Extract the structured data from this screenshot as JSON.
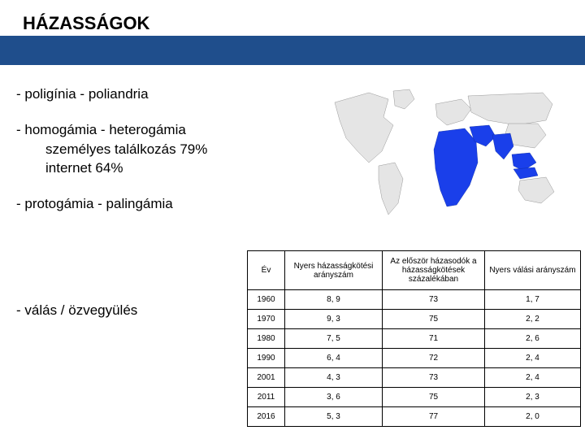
{
  "title": "HÁZASSÁGOK",
  "bullets": {
    "g1": {
      "line1": "- poligínia - poliandria"
    },
    "g2": {
      "line1": "- homogámia - heterogámia",
      "sub1": "személyes találkozás 79%",
      "sub2": "internet 64%"
    },
    "g3": {
      "line1": "- protogámia - palingámia"
    }
  },
  "final_bullet": "- válás / özvegyülés",
  "map": {
    "ocean_color": "#ffffff",
    "land_color": "#e5e5e5",
    "highlight_color": "#1a3fea",
    "border_color": "#808080"
  },
  "table": {
    "columns": [
      "Év",
      "Nyers házasságkötési arányszám",
      "Az először házasodók a házasságkötések százalékában",
      "Nyers válási arányszám"
    ],
    "rows": [
      [
        "1960",
        "8, 9",
        "73",
        "1, 7"
      ],
      [
        "1970",
        "9, 3",
        "75",
        "2, 2"
      ],
      [
        "1980",
        "7, 5",
        "71",
        "2, 6"
      ],
      [
        "1990",
        "6, 4",
        "72",
        "2, 4"
      ],
      [
        "2001",
        "4, 3",
        "73",
        "2, 4"
      ],
      [
        "2011",
        "3, 6",
        "75",
        "2, 3"
      ],
      [
        "2016",
        "5, 3",
        "77",
        "2, 0"
      ]
    ],
    "font_size": 10,
    "border_color": "#000000"
  }
}
